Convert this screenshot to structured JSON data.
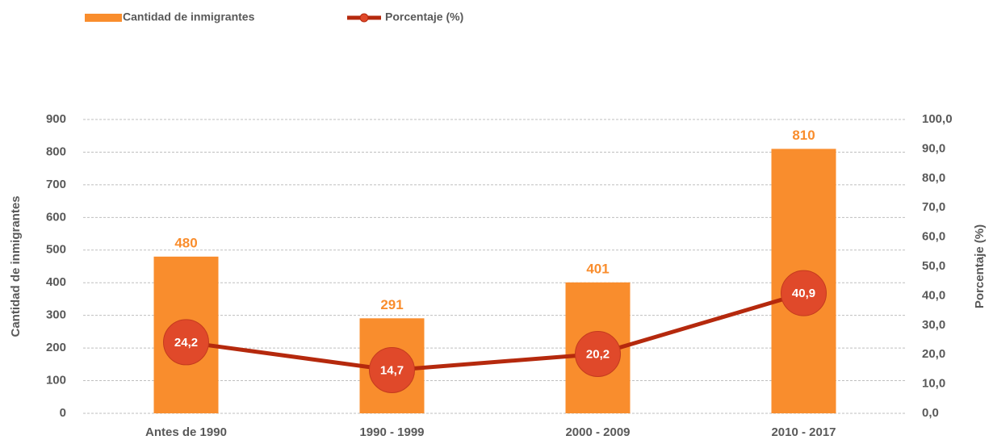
{
  "chart_data": {
    "type": "bar",
    "categories": [
      "Antes de 1990",
      "1990 - 1999",
      "2000 - 2009",
      "2010 - 2017"
    ],
    "ylabel": "Cantidad de inmigrantes",
    "y2label": "Porcentaje (%)",
    "ylim": [
      0,
      900
    ],
    "yticks": [
      0,
      100,
      200,
      300,
      400,
      500,
      600,
      700,
      800,
      900
    ],
    "y2lim": [
      0,
      100
    ],
    "y2ticks": [
      {
        "value": 0,
        "label": "0,0"
      },
      {
        "value": 10,
        "label": "10,0"
      },
      {
        "value": 20,
        "label": "20,0"
      },
      {
        "value": 30,
        "label": "30,0"
      },
      {
        "value": 40,
        "label": "40,0"
      },
      {
        "value": 50,
        "label": "50,0"
      },
      {
        "value": 60,
        "label": "60,0"
      },
      {
        "value": 70,
        "label": "70,0"
      },
      {
        "value": 80,
        "label": "80,0"
      },
      {
        "value": 90,
        "label": "90,0"
      },
      {
        "value": 100,
        "label": "100,0"
      }
    ],
    "grid": true,
    "series": [
      {
        "name": "Cantidad de inmigrantes",
        "type": "bar",
        "color": "#f98d2d",
        "values": [
          480,
          291,
          401,
          810
        ]
      },
      {
        "name": "Porcentaje (%)",
        "type": "line",
        "axis": "y2",
        "color": "#b5290d",
        "marker_color": "#e0492a",
        "values": [
          24.2,
          14.7,
          20.2,
          40.9
        ],
        "value_labels": [
          "24,2",
          "14,7",
          "20,2",
          "40,9"
        ]
      }
    ]
  }
}
